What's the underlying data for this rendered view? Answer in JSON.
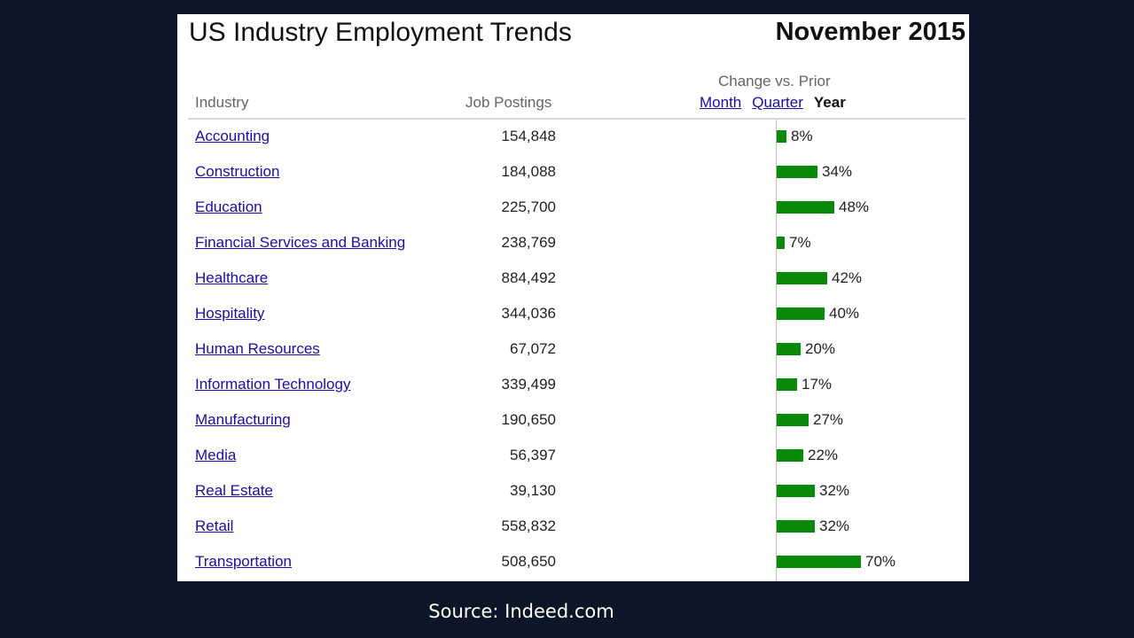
{
  "header": {
    "title": "US Industry Employment Trends",
    "date": "November 2015",
    "col_industry": "Industry",
    "col_postings": "Job Postings",
    "col_change": "Change vs. Prior",
    "period_month": "Month",
    "period_quarter": "Quarter",
    "period_year": "Year"
  },
  "source": "Source: Indeed.com",
  "colors": {
    "bar": "#0a8a0a",
    "link": "#1a0dab",
    "background": "#0b1628"
  },
  "chart_data": {
    "type": "table",
    "title": "US Industry Employment Trends",
    "columns": [
      "Industry",
      "Job Postings",
      "Change vs. Prior Year"
    ],
    "active_period": "Year",
    "rows": [
      {
        "industry": "Accounting",
        "postings": "154,848",
        "change": 8,
        "change_label": "8%"
      },
      {
        "industry": "Construction",
        "postings": "184,088",
        "change": 34,
        "change_label": "34%"
      },
      {
        "industry": "Education",
        "postings": "225,700",
        "change": 48,
        "change_label": "48%"
      },
      {
        "industry": "Financial Services and Banking",
        "postings": "238,769",
        "change": 7,
        "change_label": "7%"
      },
      {
        "industry": "Healthcare",
        "postings": "884,492",
        "change": 42,
        "change_label": "42%"
      },
      {
        "industry": "Hospitality",
        "postings": "344,036",
        "change": 40,
        "change_label": "40%"
      },
      {
        "industry": "Human Resources",
        "postings": "67,072",
        "change": 20,
        "change_label": "20%"
      },
      {
        "industry": "Information Technology",
        "postings": "339,499",
        "change": 17,
        "change_label": "17%"
      },
      {
        "industry": "Manufacturing",
        "postings": "190,650",
        "change": 27,
        "change_label": "27%"
      },
      {
        "industry": "Media",
        "postings": "56,397",
        "change": 22,
        "change_label": "22%"
      },
      {
        "industry": "Real Estate",
        "postings": "39,130",
        "change": 32,
        "change_label": "32%"
      },
      {
        "industry": "Retail",
        "postings": "558,832",
        "change": 32,
        "change_label": "32%"
      },
      {
        "industry": "Transportation",
        "postings": "508,650",
        "change": 70,
        "change_label": "70%"
      }
    ]
  }
}
